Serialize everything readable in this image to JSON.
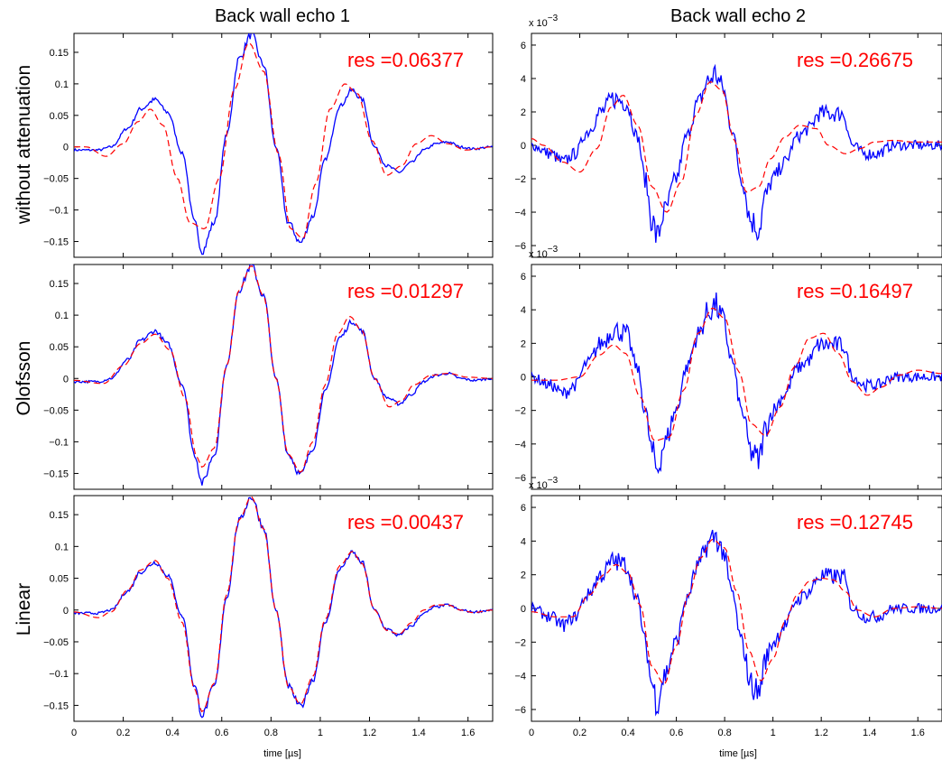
{
  "colors": {
    "measured": "#0000ff",
    "model": "#ff0000",
    "res_text": "#ff0000",
    "axes": "#000000"
  },
  "figure": {
    "column_titles": [
      "Back wall echo 1",
      "Back wall echo 2"
    ],
    "row_labels": [
      "without attenuation",
      "Olofsson",
      "Linear"
    ],
    "xlabel": "time [µs]",
    "multiplier_label": "x 10",
    "multiplier_exponent": "−3"
  },
  "chart_data": [
    {
      "type": "line",
      "row": 0,
      "col": 0,
      "annotation": "res =0.06377",
      "xlim": [
        0,
        1.7
      ],
      "ylim": [
        -0.175,
        0.18
      ],
      "xticks": [
        0,
        0.2,
        0.4,
        0.6,
        0.8,
        1,
        1.2,
        1.4,
        1.6
      ],
      "yticks": [
        -0.15,
        -0.1,
        -0.05,
        0,
        0.05,
        0.1,
        0.15
      ],
      "series": [
        {
          "style": "solid",
          "noise": 0.003,
          "x": [
            0,
            0.1,
            0.15,
            0.22,
            0.27,
            0.33,
            0.38,
            0.44,
            0.49,
            0.52,
            0.57,
            0.62,
            0.67,
            0.72,
            0.77,
            0.82,
            0.87,
            0.92,
            0.97,
            1.02,
            1.08,
            1.13,
            1.17,
            1.22,
            1.27,
            1.32,
            1.37,
            1.42,
            1.47,
            1.52,
            1.57,
            1.62,
            1.7
          ],
          "y": [
            -0.005,
            -0.005,
            0.0,
            0.03,
            0.06,
            0.075,
            0.055,
            -0.01,
            -0.12,
            -0.165,
            -0.12,
            0.02,
            0.14,
            0.178,
            0.13,
            0.0,
            -0.12,
            -0.152,
            -0.11,
            -0.02,
            0.065,
            0.09,
            0.075,
            0.0,
            -0.03,
            -0.04,
            -0.025,
            -0.005,
            0.005,
            0.008,
            0.0,
            -0.003,
            0.0
          ]
        },
        {
          "style": "dashed",
          "x": [
            0,
            0.05,
            0.13,
            0.2,
            0.26,
            0.31,
            0.36,
            0.42,
            0.47,
            0.53,
            0.59,
            0.65,
            0.71,
            0.77,
            0.83,
            0.88,
            0.93,
            0.98,
            1.04,
            1.1,
            1.15,
            1.21,
            1.27,
            1.33,
            1.39,
            1.45,
            1.52,
            1.59,
            1.7
          ],
          "y": [
            0.0,
            0.0,
            -0.015,
            0.005,
            0.04,
            0.06,
            0.035,
            -0.05,
            -0.12,
            -0.13,
            -0.05,
            0.09,
            0.165,
            0.12,
            -0.01,
            -0.13,
            -0.145,
            -0.06,
            0.06,
            0.1,
            0.085,
            0.01,
            -0.045,
            -0.03,
            0.005,
            0.018,
            0.005,
            -0.005,
            0.0
          ]
        }
      ]
    },
    {
      "type": "line",
      "row": 0,
      "col": 1,
      "annotation": "res =0.26675",
      "multiplier": true,
      "xlim": [
        0,
        1.7
      ],
      "ylim": [
        -6.7,
        6.7
      ],
      "xticks": [
        0,
        0.2,
        0.4,
        0.6,
        0.8,
        1,
        1.2,
        1.4,
        1.6
      ],
      "yticks": [
        -6,
        -4,
        -2,
        0,
        2,
        4,
        6
      ],
      "series": [
        {
          "style": "solid",
          "noise": 0.5,
          "x": [
            0,
            0.08,
            0.13,
            0.18,
            0.23,
            0.29,
            0.34,
            0.39,
            0.44,
            0.47,
            0.5,
            0.52,
            0.55,
            0.6,
            0.64,
            0.69,
            0.73,
            0.76,
            0.79,
            0.83,
            0.87,
            0.91,
            0.94,
            0.97,
            1.0,
            1.05,
            1.1,
            1.15,
            1.19,
            1.21,
            1.26,
            1.29,
            1.33,
            1.38,
            1.43,
            1.5,
            1.7
          ],
          "y": [
            0.0,
            -0.5,
            -1.0,
            -0.5,
            0.8,
            2.0,
            2.8,
            2.6,
            0.5,
            -2.0,
            -4.5,
            -5.5,
            -4.0,
            -2.0,
            0.5,
            2.5,
            3.8,
            4.3,
            3.5,
            1.0,
            -2.0,
            -4.5,
            -5.0,
            -3.0,
            -2.0,
            -1.0,
            0.5,
            1.0,
            1.9,
            1.9,
            1.9,
            1.9,
            0.0,
            -0.5,
            -0.5,
            0.0,
            0.0
          ]
        },
        {
          "style": "dashed",
          "x": [
            0,
            0.05,
            0.13,
            0.2,
            0.27,
            0.33,
            0.38,
            0.44,
            0.5,
            0.56,
            0.62,
            0.68,
            0.74,
            0.79,
            0.84,
            0.89,
            0.94,
            0.99,
            1.05,
            1.11,
            1.18,
            1.23,
            1.3,
            1.36,
            1.42,
            1.5,
            1.58,
            1.7
          ],
          "y": [
            0.4,
            0.0,
            -1.0,
            -1.6,
            -0.2,
            2.3,
            3.0,
            1.2,
            -2.5,
            -4.0,
            -2.2,
            1.8,
            3.8,
            3.3,
            0.3,
            -2.8,
            -2.5,
            -0.8,
            0.5,
            1.2,
            1.0,
            0.0,
            -0.5,
            -0.2,
            0.2,
            0.3,
            0.2,
            0.2
          ]
        }
      ]
    },
    {
      "type": "line",
      "row": 1,
      "col": 0,
      "annotation": "res =0.01297",
      "xlim": [
        0,
        1.7
      ],
      "ylim": [
        -0.175,
        0.18
      ],
      "xticks": [
        0,
        0.2,
        0.4,
        0.6,
        0.8,
        1,
        1.2,
        1.4,
        1.6
      ],
      "yticks": [
        -0.15,
        -0.1,
        -0.05,
        0,
        0.05,
        0.1,
        0.15
      ],
      "series": [
        {
          "style": "solid",
          "noise": 0.003,
          "x": [
            0,
            0.1,
            0.15,
            0.22,
            0.27,
            0.33,
            0.38,
            0.44,
            0.49,
            0.52,
            0.57,
            0.62,
            0.67,
            0.72,
            0.77,
            0.82,
            0.87,
            0.92,
            0.97,
            1.02,
            1.08,
            1.13,
            1.17,
            1.22,
            1.27,
            1.32,
            1.37,
            1.42,
            1.47,
            1.52,
            1.57,
            1.62,
            1.7
          ],
          "y": [
            -0.005,
            -0.005,
            0.0,
            0.03,
            0.06,
            0.075,
            0.055,
            -0.01,
            -0.12,
            -0.165,
            -0.12,
            0.02,
            0.14,
            0.178,
            0.13,
            0.0,
            -0.12,
            -0.152,
            -0.11,
            -0.02,
            0.065,
            0.09,
            0.075,
            0.0,
            -0.03,
            -0.04,
            -0.025,
            -0.005,
            0.005,
            0.008,
            0.0,
            -0.003,
            0.0
          ]
        },
        {
          "style": "dashed",
          "x": [
            0,
            0.12,
            0.2,
            0.27,
            0.33,
            0.39,
            0.45,
            0.5,
            0.52,
            0.57,
            0.62,
            0.67,
            0.72,
            0.77,
            0.82,
            0.87,
            0.92,
            0.97,
            1.02,
            1.07,
            1.12,
            1.17,
            1.22,
            1.28,
            1.33,
            1.38,
            1.45,
            1.52,
            1.6,
            1.7
          ],
          "y": [
            -0.003,
            -0.008,
            0.02,
            0.055,
            0.07,
            0.045,
            -0.03,
            -0.125,
            -0.14,
            -0.11,
            0.02,
            0.14,
            0.178,
            0.13,
            0.0,
            -0.12,
            -0.148,
            -0.1,
            -0.01,
            0.07,
            0.098,
            0.075,
            0.0,
            -0.045,
            -0.035,
            -0.01,
            0.005,
            0.008,
            0.002,
            0.0
          ]
        }
      ]
    },
    {
      "type": "line",
      "row": 1,
      "col": 1,
      "annotation": "res =0.16497",
      "multiplier": true,
      "xlim": [
        0,
        1.7
      ],
      "ylim": [
        -6.7,
        6.7
      ],
      "xticks": [
        0,
        0.2,
        0.4,
        0.6,
        0.8,
        1,
        1.2,
        1.4,
        1.6
      ],
      "yticks": [
        -6,
        -4,
        -2,
        0,
        2,
        4,
        6
      ],
      "series": [
        {
          "style": "solid",
          "noise": 0.5,
          "x": [
            0,
            0.08,
            0.13,
            0.18,
            0.23,
            0.29,
            0.34,
            0.39,
            0.44,
            0.47,
            0.5,
            0.52,
            0.55,
            0.6,
            0.64,
            0.69,
            0.73,
            0.76,
            0.79,
            0.83,
            0.87,
            0.91,
            0.94,
            0.97,
            1.0,
            1.05,
            1.1,
            1.15,
            1.19,
            1.21,
            1.26,
            1.29,
            1.33,
            1.38,
            1.43,
            1.5,
            1.7
          ],
          "y": [
            0.0,
            -0.5,
            -1.0,
            -0.5,
            0.8,
            2.0,
            2.8,
            2.6,
            0.5,
            -2.0,
            -4.5,
            -5.5,
            -4.0,
            -2.0,
            0.5,
            2.5,
            3.8,
            4.3,
            3.5,
            1.0,
            -2.0,
            -4.5,
            -5.0,
            -3.0,
            -2.0,
            -1.0,
            0.5,
            1.0,
            1.9,
            1.9,
            1.9,
            1.9,
            0.0,
            -0.5,
            -0.5,
            0.0,
            0.0
          ]
        },
        {
          "style": "dashed",
          "x": [
            0,
            0.1,
            0.2,
            0.28,
            0.34,
            0.39,
            0.45,
            0.51,
            0.57,
            0.63,
            0.69,
            0.75,
            0.8,
            0.86,
            0.91,
            0.97,
            1.03,
            1.09,
            1.15,
            1.21,
            1.27,
            1.33,
            1.39,
            1.45,
            1.52,
            1.6,
            1.7
          ],
          "y": [
            -0.2,
            -0.2,
            0.0,
            1.3,
            1.9,
            1.4,
            -1.2,
            -3.8,
            -3.6,
            -0.8,
            2.6,
            4.1,
            3.5,
            0.3,
            -2.8,
            -3.5,
            -1.8,
            0.6,
            2.3,
            2.6,
            1.4,
            -0.3,
            -1.1,
            -0.6,
            0.1,
            0.4,
            0.2
          ]
        }
      ]
    },
    {
      "type": "line",
      "row": 2,
      "col": 0,
      "annotation": "res =0.00437",
      "xlim": [
        0,
        1.7
      ],
      "ylim": [
        -0.175,
        0.18
      ],
      "xticks": [
        0,
        0.2,
        0.4,
        0.6,
        0.8,
        1,
        1.2,
        1.4,
        1.6
      ],
      "yticks": [
        -0.15,
        -0.1,
        -0.05,
        0,
        0.05,
        0.1,
        0.15
      ],
      "series": [
        {
          "style": "solid",
          "noise": 0.003,
          "x": [
            0,
            0.1,
            0.15,
            0.22,
            0.27,
            0.33,
            0.38,
            0.44,
            0.49,
            0.52,
            0.57,
            0.62,
            0.67,
            0.72,
            0.77,
            0.82,
            0.87,
            0.92,
            0.97,
            1.02,
            1.08,
            1.13,
            1.17,
            1.22,
            1.27,
            1.32,
            1.37,
            1.42,
            1.47,
            1.52,
            1.57,
            1.62,
            1.7
          ],
          "y": [
            -0.005,
            -0.005,
            0.0,
            0.03,
            0.06,
            0.075,
            0.055,
            -0.01,
            -0.12,
            -0.165,
            -0.12,
            0.02,
            0.14,
            0.178,
            0.13,
            0.0,
            -0.12,
            -0.152,
            -0.11,
            -0.02,
            0.065,
            0.09,
            0.075,
            0.0,
            -0.03,
            -0.04,
            -0.025,
            -0.005,
            0.005,
            0.008,
            0.0,
            -0.003,
            0.0
          ]
        },
        {
          "style": "dashed",
          "x": [
            0,
            0.1,
            0.15,
            0.22,
            0.27,
            0.33,
            0.38,
            0.44,
            0.49,
            0.52,
            0.57,
            0.62,
            0.67,
            0.72,
            0.77,
            0.82,
            0.87,
            0.92,
            0.97,
            1.02,
            1.08,
            1.13,
            1.17,
            1.22,
            1.27,
            1.32,
            1.37,
            1.42,
            1.47,
            1.52,
            1.57,
            1.62,
            1.7
          ],
          "y": [
            -0.003,
            -0.012,
            -0.003,
            0.032,
            0.063,
            0.078,
            0.05,
            -0.02,
            -0.125,
            -0.16,
            -0.115,
            0.025,
            0.142,
            0.178,
            0.128,
            0.0,
            -0.12,
            -0.148,
            -0.105,
            -0.015,
            0.07,
            0.092,
            0.073,
            0.0,
            -0.032,
            -0.038,
            -0.02,
            0.0,
            0.008,
            0.008,
            0.0,
            -0.004,
            0.0
          ]
        }
      ]
    },
    {
      "type": "line",
      "row": 2,
      "col": 1,
      "annotation": "res =0.12745",
      "multiplier": false,
      "xlim": [
        0,
        1.7
      ],
      "ylim": [
        -6.7,
        6.7
      ],
      "xticks": [
        0,
        0.2,
        0.4,
        0.6,
        0.8,
        1,
        1.2,
        1.4,
        1.6
      ],
      "yticks": [
        -6,
        -4,
        -2,
        0,
        2,
        4,
        6
      ],
      "series": [
        {
          "style": "solid",
          "noise": 0.5,
          "x": [
            0,
            0.08,
            0.13,
            0.18,
            0.23,
            0.29,
            0.34,
            0.39,
            0.44,
            0.47,
            0.5,
            0.52,
            0.55,
            0.6,
            0.64,
            0.69,
            0.73,
            0.76,
            0.79,
            0.83,
            0.87,
            0.91,
            0.94,
            0.97,
            1.0,
            1.05,
            1.1,
            1.15,
            1.19,
            1.21,
            1.26,
            1.29,
            1.33,
            1.38,
            1.43,
            1.5,
            1.7
          ],
          "y": [
            0.0,
            -0.5,
            -1.0,
            -0.5,
            0.8,
            2.0,
            2.8,
            2.6,
            0.5,
            -2.0,
            -4.5,
            -5.5,
            -4.0,
            -2.0,
            0.5,
            2.5,
            3.8,
            4.3,
            3.5,
            1.0,
            -2.0,
            -4.5,
            -5.0,
            -3.0,
            -2.0,
            -1.0,
            0.5,
            1.0,
            1.9,
            1.9,
            1.9,
            1.9,
            0.0,
            -0.5,
            -0.5,
            0.0,
            0.0
          ]
        },
        {
          "style": "dashed",
          "x": [
            0,
            0.1,
            0.17,
            0.24,
            0.3,
            0.35,
            0.4,
            0.45,
            0.5,
            0.55,
            0.6,
            0.65,
            0.7,
            0.75,
            0.8,
            0.85,
            0.9,
            0.95,
            1.0,
            1.05,
            1.1,
            1.15,
            1.2,
            1.25,
            1.3,
            1.35,
            1.42,
            1.5,
            1.6,
            1.7
          ],
          "y": [
            -0.2,
            -0.5,
            -0.5,
            0.8,
            2.0,
            2.6,
            2.1,
            0.2,
            -3.5,
            -4.5,
            -2.2,
            0.8,
            3.0,
            4.1,
            3.6,
            1.0,
            -2.5,
            -4.3,
            -3.0,
            -0.8,
            0.8,
            1.6,
            1.8,
            1.7,
            1.0,
            -0.1,
            -0.5,
            0.0,
            0.1,
            0.0
          ]
        }
      ]
    }
  ]
}
